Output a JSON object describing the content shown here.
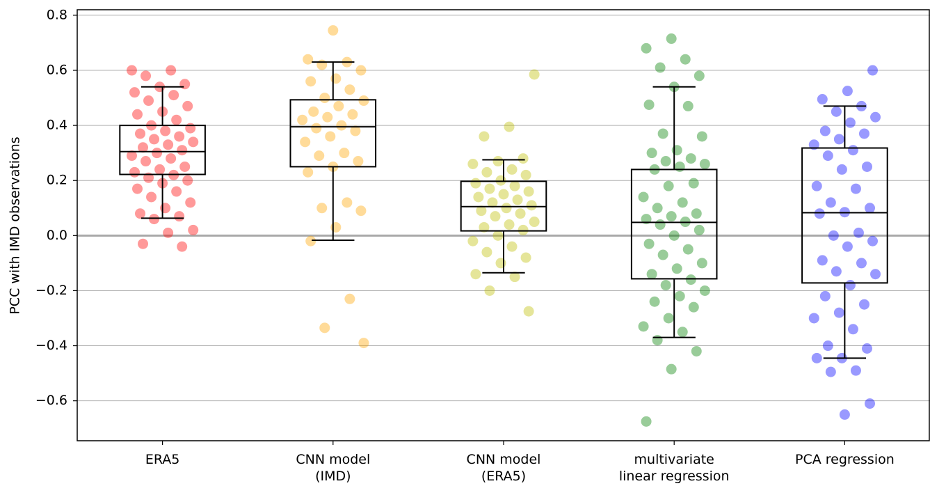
{
  "chart_data": {
    "type": "box",
    "ylabel": "PCC with IMD observations",
    "categories": [
      "ERA5",
      "CNN model\n(IMD)",
      "CNN model\n(ERA5)",
      "multivariate\nlinear regression",
      "PCA regression"
    ],
    "boxes": [
      {
        "whislo": 0.063,
        "q1": 0.222,
        "med": 0.305,
        "q3": 0.4,
        "whishi": 0.54
      },
      {
        "whislo": -0.017,
        "q1": 0.25,
        "med": 0.395,
        "q3": 0.493,
        "whishi": 0.63
      },
      {
        "whislo": -0.135,
        "q1": 0.017,
        "med": 0.105,
        "q3": 0.197,
        "whishi": 0.275
      },
      {
        "whislo": -0.37,
        "q1": -0.157,
        "med": 0.048,
        "q3": 0.24,
        "whishi": 0.54
      },
      {
        "whislo": -0.445,
        "q1": -0.172,
        "med": 0.083,
        "q3": 0.318,
        "whishi": 0.47
      }
    ],
    "points": [
      {
        "color": "#ff0000",
        "values": [
          0.6,
          0.6,
          0.58,
          0.55,
          0.54,
          0.52,
          0.51,
          0.49,
          0.47,
          0.45,
          0.44,
          0.42,
          0.4,
          0.39,
          0.38,
          0.37,
          0.36,
          0.35,
          0.34,
          0.33,
          0.32,
          0.31,
          0.3,
          0.29,
          0.28,
          0.27,
          0.25,
          0.24,
          0.23,
          0.22,
          0.21,
          0.2,
          0.19,
          0.17,
          0.16,
          0.14,
          0.12,
          0.1,
          0.08,
          0.07,
          0.06,
          0.02,
          0.01,
          -0.03,
          -0.04
        ]
      },
      {
        "color": "#ffa500",
        "values": [
          0.745,
          0.64,
          0.63,
          0.62,
          0.6,
          0.57,
          0.56,
          0.53,
          0.5,
          0.49,
          0.47,
          0.45,
          0.44,
          0.43,
          0.42,
          0.4,
          0.39,
          0.38,
          0.36,
          0.34,
          0.3,
          0.29,
          0.27,
          0.25,
          0.23,
          0.12,
          0.1,
          0.09,
          0.03,
          -0.02,
          -0.23,
          -0.335,
          -0.39
        ]
      },
      {
        "color": "#bfbf00",
        "values": [
          0.585,
          0.395,
          0.36,
          0.28,
          0.27,
          0.26,
          0.24,
          0.23,
          0.22,
          0.2,
          0.19,
          0.18,
          0.17,
          0.16,
          0.15,
          0.14,
          0.13,
          0.12,
          0.11,
          0.1,
          0.09,
          0.08,
          0.07,
          0.05,
          0.04,
          0.03,
          0.02,
          0.0,
          -0.02,
          -0.04,
          -0.06,
          -0.08,
          -0.1,
          -0.14,
          -0.15,
          -0.2,
          -0.275
        ]
      },
      {
        "color": "#008000",
        "values": [
          0.715,
          0.68,
          0.64,
          0.61,
          0.58,
          0.54,
          0.475,
          0.47,
          0.37,
          0.36,
          0.31,
          0.3,
          0.28,
          0.27,
          0.26,
          0.25,
          0.24,
          0.19,
          0.18,
          0.14,
          0.12,
          0.1,
          0.08,
          0.07,
          0.06,
          0.05,
          0.04,
          0.02,
          0.0,
          -0.03,
          -0.05,
          -0.07,
          -0.1,
          -0.12,
          -0.14,
          -0.16,
          -0.18,
          -0.2,
          -0.22,
          -0.24,
          -0.26,
          -0.3,
          -0.33,
          -0.35,
          -0.38,
          -0.42,
          -0.485,
          -0.675
        ]
      },
      {
        "color": "#0000ff",
        "values": [
          0.6,
          0.525,
          0.495,
          0.47,
          0.45,
          0.43,
          0.41,
          0.38,
          0.37,
          0.35,
          0.33,
          0.31,
          0.29,
          0.25,
          0.24,
          0.18,
          0.17,
          0.12,
          0.1,
          0.085,
          0.08,
          0.01,
          0.0,
          -0.02,
          -0.04,
          -0.09,
          -0.1,
          -0.13,
          -0.14,
          -0.18,
          -0.22,
          -0.25,
          -0.28,
          -0.3,
          -0.34,
          -0.4,
          -0.41,
          -0.445,
          -0.445,
          -0.49,
          -0.495,
          -0.61,
          -0.65
        ]
      }
    ],
    "reference_line": 0,
    "ylim": [
      -0.745,
      0.82
    ],
    "yticks": [
      {
        "value": -0.6,
        "label": "−0.6"
      },
      {
        "value": -0.4,
        "label": "−0.4"
      },
      {
        "value": -0.2,
        "label": "−0.2"
      },
      {
        "value": 0,
        "label": "0.0"
      },
      0.2,
      0.4,
      0.6,
      0.8
    ],
    "grid": true
  }
}
